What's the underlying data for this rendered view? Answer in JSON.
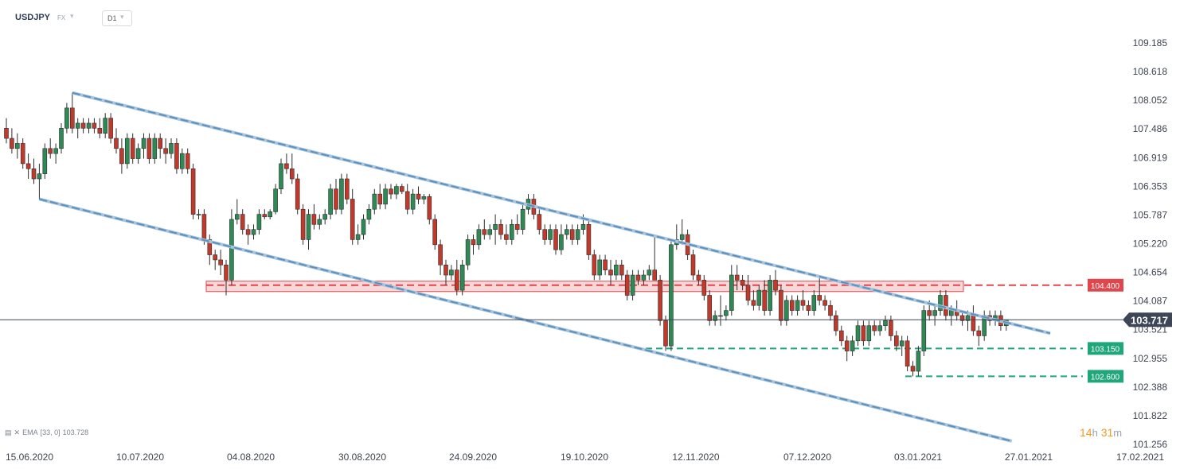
{
  "header": {
    "symbol": "USDJPY",
    "market": "FX",
    "caret_icon": "chevron-down-icon",
    "timeframe": "D1"
  },
  "indicator": {
    "icon": "indicator-icon",
    "close_icon": "close-icon",
    "label": "EMA",
    "params": "[33, 0]",
    "value": "103.728"
  },
  "countdown": {
    "hours": "14",
    "h_unit": "h",
    "minutes": "31",
    "m_unit": "m"
  },
  "colors": {
    "bull": "#2e8a55",
    "bear": "#c0392b",
    "channel": "#5a91bf",
    "resistance": "#e0474c",
    "support": "#1fa77a",
    "price_tag": "#3d4656"
  },
  "chart_data": {
    "type": "candlestick",
    "symbol": "USDJPY",
    "timeframe": "D1",
    "last_price": 103.717,
    "ylim": [
      101.1,
      109.5
    ],
    "y_ticks": [
      109.185,
      108.618,
      108.052,
      107.486,
      106.919,
      106.353,
      105.787,
      105.22,
      104.654,
      104.087,
      103.521,
      102.955,
      102.388,
      101.822,
      101.256
    ],
    "x_ticks": [
      "15.06.2020",
      "10.07.2020",
      "04.08.2020",
      "30.08.2020",
      "24.09.2020",
      "19.10.2020",
      "12.11.2020",
      "07.12.2020",
      "03.01.2021",
      "27.01.2021",
      "17.02.2021"
    ],
    "levels": [
      {
        "value": 104.4,
        "label": "104.400",
        "kind": "resistance zone"
      },
      {
        "value": 103.15,
        "label": "103.150",
        "kind": "support"
      },
      {
        "value": 102.6,
        "label": "102.600",
        "kind": "support"
      }
    ],
    "channel_upper": [
      {
        "bar": 12,
        "price": 108.2
      },
      {
        "bar": 190,
        "price": 103.45
      }
    ],
    "channel_lower": [
      {
        "bar": 6,
        "price": 106.1
      },
      {
        "bar": 183,
        "price": 101.32
      }
    ],
    "candles": [
      [
        107.5,
        107.7,
        107.2,
        107.3
      ],
      [
        107.3,
        107.5,
        107.0,
        107.1
      ],
      [
        107.1,
        107.4,
        106.9,
        107.2
      ],
      [
        107.2,
        107.3,
        106.7,
        106.8
      ],
      [
        106.8,
        107.0,
        106.5,
        106.7
      ],
      [
        106.7,
        106.9,
        106.4,
        106.5
      ],
      [
        106.5,
        106.8,
        106.1,
        106.6
      ],
      [
        106.6,
        107.2,
        106.5,
        107.1
      ],
      [
        107.1,
        107.3,
        106.9,
        107.0
      ],
      [
        107.0,
        107.2,
        106.8,
        107.1
      ],
      [
        107.1,
        107.6,
        107.0,
        107.5
      ],
      [
        107.5,
        108.0,
        107.4,
        107.9
      ],
      [
        107.9,
        108.2,
        107.4,
        107.5
      ],
      [
        107.5,
        107.7,
        107.3,
        107.6
      ],
      [
        107.6,
        107.7,
        107.4,
        107.5
      ],
      [
        107.5,
        107.7,
        107.4,
        107.6
      ],
      [
        107.6,
        107.7,
        107.4,
        107.5
      ],
      [
        107.5,
        107.7,
        107.3,
        107.4
      ],
      [
        107.4,
        107.8,
        107.3,
        107.7
      ],
      [
        107.7,
        107.8,
        107.2,
        107.3
      ],
      [
        107.3,
        107.5,
        107.0,
        107.1
      ],
      [
        107.1,
        107.3,
        106.6,
        106.8
      ],
      [
        106.8,
        107.4,
        106.7,
        107.3
      ],
      [
        107.3,
        107.4,
        106.8,
        106.9
      ],
      [
        106.9,
        107.2,
        106.8,
        107.1
      ],
      [
        107.1,
        107.4,
        106.9,
        107.3
      ],
      [
        107.3,
        107.4,
        106.8,
        106.9
      ],
      [
        106.9,
        107.4,
        106.8,
        107.3
      ],
      [
        107.3,
        107.4,
        106.9,
        107.1
      ],
      [
        107.1,
        107.3,
        106.8,
        107.0
      ],
      [
        107.0,
        107.3,
        106.9,
        107.2
      ],
      [
        107.2,
        107.3,
        106.6,
        106.7
      ],
      [
        106.7,
        107.1,
        106.6,
        107.0
      ],
      [
        107.0,
        107.1,
        106.6,
        106.7
      ],
      [
        106.7,
        106.8,
        105.7,
        105.8
      ],
      [
        105.8,
        105.9,
        105.7,
        105.8
      ],
      [
        105.8,
        105.9,
        105.2,
        105.3
      ],
      [
        105.3,
        105.4,
        104.8,
        105.0
      ],
      [
        105.0,
        105.1,
        104.7,
        104.9
      ],
      [
        104.9,
        105.1,
        104.6,
        104.8
      ],
      [
        104.8,
        104.9,
        104.2,
        104.5
      ],
      [
        104.5,
        105.9,
        104.4,
        105.7
      ],
      [
        105.7,
        106.1,
        105.6,
        105.8
      ],
      [
        105.8,
        105.9,
        105.4,
        105.5
      ],
      [
        105.5,
        105.6,
        105.2,
        105.4
      ],
      [
        105.4,
        105.6,
        105.3,
        105.5
      ],
      [
        105.5,
        105.9,
        105.4,
        105.8
      ],
      [
        105.8,
        105.9,
        105.7,
        105.75
      ],
      [
        105.75,
        105.9,
        105.7,
        105.85
      ],
      [
        105.85,
        106.4,
        105.8,
        106.3
      ],
      [
        106.3,
        106.9,
        106.2,
        106.8
      ],
      [
        106.8,
        107.0,
        106.6,
        106.7
      ],
      [
        106.7,
        107.0,
        106.4,
        106.5
      ],
      [
        106.5,
        106.6,
        105.8,
        105.9
      ],
      [
        105.9,
        106.0,
        105.2,
        105.3
      ],
      [
        105.3,
        105.9,
        105.1,
        105.8
      ],
      [
        105.8,
        106.0,
        105.5,
        105.6
      ],
      [
        105.6,
        105.8,
        105.5,
        105.7
      ],
      [
        105.7,
        105.9,
        105.6,
        105.8
      ],
      [
        105.8,
        106.4,
        105.7,
        106.3
      ],
      [
        106.3,
        106.5,
        105.8,
        105.9
      ],
      [
        105.9,
        106.6,
        105.8,
        106.5
      ],
      [
        106.5,
        106.6,
        106.0,
        106.1
      ],
      [
        106.1,
        106.3,
        105.2,
        105.3
      ],
      [
        105.3,
        105.6,
        105.2,
        105.4
      ],
      [
        105.4,
        105.8,
        105.3,
        105.7
      ],
      [
        105.7,
        106.0,
        105.6,
        105.9
      ],
      [
        105.9,
        106.3,
        105.8,
        106.2
      ],
      [
        106.2,
        106.4,
        105.9,
        106.0
      ],
      [
        106.0,
        106.4,
        105.9,
        106.3
      ],
      [
        106.3,
        106.4,
        106.1,
        106.2
      ],
      [
        106.2,
        106.4,
        106.1,
        106.35
      ],
      [
        106.35,
        106.4,
        106.2,
        106.25
      ],
      [
        106.25,
        106.4,
        105.8,
        105.9
      ],
      [
        105.9,
        106.3,
        105.8,
        106.2
      ],
      [
        106.2,
        106.35,
        106.0,
        106.1
      ],
      [
        106.1,
        106.2,
        106.0,
        106.15
      ],
      [
        106.15,
        106.2,
        105.6,
        105.7
      ],
      [
        105.7,
        105.8,
        105.1,
        105.2
      ],
      [
        105.2,
        105.3,
        104.6,
        104.8
      ],
      [
        104.8,
        104.9,
        104.4,
        104.6
      ],
      [
        104.6,
        104.8,
        104.5,
        104.7
      ],
      [
        104.7,
        104.9,
        104.2,
        104.3
      ],
      [
        104.3,
        104.9,
        104.2,
        104.8
      ],
      [
        104.8,
        105.4,
        104.7,
        105.3
      ],
      [
        105.3,
        105.4,
        105.0,
        105.2
      ],
      [
        105.2,
        105.6,
        105.1,
        105.5
      ],
      [
        105.5,
        105.7,
        105.3,
        105.4
      ],
      [
        105.4,
        105.6,
        105.3,
        105.5
      ],
      [
        105.5,
        105.8,
        105.2,
        105.6
      ],
      [
        105.6,
        105.7,
        105.3,
        105.4
      ],
      [
        105.4,
        105.6,
        105.2,
        105.3
      ],
      [
        105.3,
        105.7,
        105.2,
        105.6
      ],
      [
        105.6,
        105.8,
        105.4,
        105.5
      ],
      [
        105.5,
        106.0,
        105.4,
        105.9
      ],
      [
        105.9,
        106.2,
        105.8,
        106.1
      ],
      [
        106.1,
        106.2,
        105.7,
        105.8
      ],
      [
        105.8,
        105.9,
        105.4,
        105.5
      ],
      [
        105.5,
        105.6,
        105.2,
        105.3
      ],
      [
        105.3,
        105.6,
        105.2,
        105.5
      ],
      [
        105.5,
        105.6,
        105.0,
        105.1
      ],
      [
        105.1,
        105.6,
        105.0,
        105.4
      ],
      [
        105.4,
        105.6,
        105.3,
        105.5
      ],
      [
        105.5,
        105.6,
        105.2,
        105.3
      ],
      [
        105.3,
        105.6,
        105.2,
        105.5
      ],
      [
        105.5,
        105.8,
        105.4,
        105.6
      ],
      [
        105.6,
        105.7,
        104.9,
        105.0
      ],
      [
        105.0,
        105.1,
        104.5,
        104.6
      ],
      [
        104.6,
        105.0,
        104.5,
        104.9
      ],
      [
        104.9,
        105.0,
        104.6,
        104.7
      ],
      [
        104.7,
        104.9,
        104.4,
        104.6
      ],
      [
        104.6,
        104.9,
        104.5,
        104.8
      ],
      [
        104.8,
        104.9,
        104.5,
        104.6
      ],
      [
        104.6,
        104.7,
        104.1,
        104.2
      ],
      [
        104.2,
        104.7,
        104.1,
        104.6
      ],
      [
        104.6,
        104.7,
        104.4,
        104.5
      ],
      [
        104.5,
        104.7,
        104.4,
        104.6
      ],
      [
        104.6,
        104.8,
        104.5,
        104.7
      ],
      [
        104.7,
        105.4,
        104.5,
        104.5
      ],
      [
        104.5,
        104.6,
        103.6,
        103.7
      ],
      [
        103.7,
        103.8,
        103.1,
        103.2
      ],
      [
        103.2,
        105.3,
        103.1,
        105.2
      ],
      [
        105.2,
        105.6,
        105.1,
        105.3
      ],
      [
        105.3,
        105.7,
        105.2,
        105.4
      ],
      [
        105.4,
        105.5,
        104.9,
        105.0
      ],
      [
        105.0,
        105.1,
        104.5,
        104.6
      ],
      [
        104.6,
        104.7,
        104.4,
        104.5
      ],
      [
        104.5,
        104.6,
        104.1,
        104.2
      ],
      [
        104.2,
        104.3,
        103.6,
        103.7
      ],
      [
        103.7,
        103.9,
        103.6,
        103.8
      ],
      [
        103.8,
        104.2,
        103.6,
        103.8
      ],
      [
        103.8,
        104.0,
        103.7,
        103.9
      ],
      [
        103.9,
        104.8,
        103.8,
        104.6
      ],
      [
        104.6,
        104.8,
        104.3,
        104.5
      ],
      [
        104.5,
        104.6,
        104.3,
        104.4
      ],
      [
        104.4,
        104.6,
        104.0,
        104.1
      ],
      [
        104.1,
        104.3,
        103.9,
        104.0
      ],
      [
        104.0,
        104.4,
        103.9,
        104.3
      ],
      [
        104.3,
        104.5,
        103.8,
        103.9
      ],
      [
        103.9,
        104.6,
        103.8,
        104.5
      ],
      [
        104.5,
        104.7,
        104.2,
        104.3
      ],
      [
        104.3,
        104.4,
        103.6,
        103.7
      ],
      [
        103.7,
        104.2,
        103.6,
        104.1
      ],
      [
        104.1,
        104.2,
        103.8,
        103.9
      ],
      [
        103.9,
        104.2,
        103.8,
        104.1
      ],
      [
        104.1,
        104.3,
        103.9,
        104.0
      ],
      [
        104.0,
        104.1,
        103.8,
        103.9
      ],
      [
        103.9,
        104.3,
        103.8,
        104.2
      ],
      [
        104.2,
        104.6,
        104.0,
        104.1
      ],
      [
        104.1,
        104.2,
        103.9,
        104.0
      ],
      [
        104.0,
        104.1,
        103.7,
        103.8
      ],
      [
        103.8,
        103.9,
        103.4,
        103.5
      ],
      [
        103.5,
        103.6,
        103.2,
        103.3
      ],
      [
        103.3,
        103.4,
        102.9,
        103.1
      ],
      [
        103.1,
        103.4,
        103.0,
        103.3
      ],
      [
        103.3,
        103.7,
        103.2,
        103.6
      ],
      [
        103.6,
        103.7,
        103.2,
        103.3
      ],
      [
        103.3,
        103.7,
        103.2,
        103.6
      ],
      [
        103.6,
        103.7,
        103.4,
        103.5
      ],
      [
        103.5,
        103.7,
        103.4,
        103.6
      ],
      [
        103.6,
        103.8,
        103.5,
        103.7
      ],
      [
        103.7,
        103.8,
        103.3,
        103.4
      ],
      [
        103.4,
        103.5,
        103.1,
        103.2
      ],
      [
        103.2,
        103.4,
        103.0,
        103.3
      ],
      [
        103.3,
        103.4,
        102.7,
        102.8
      ],
      [
        102.8,
        102.9,
        102.6,
        102.7
      ],
      [
        102.7,
        103.2,
        102.6,
        103.1
      ],
      [
        103.1,
        104.0,
        103.0,
        103.9
      ],
      [
        103.9,
        104.1,
        103.7,
        103.8
      ],
      [
        103.8,
        104.0,
        103.6,
        103.9
      ],
      [
        103.9,
        104.3,
        103.8,
        104.2
      ],
      [
        104.2,
        104.3,
        103.7,
        103.8
      ],
      [
        103.8,
        104.0,
        103.6,
        103.9
      ],
      [
        103.9,
        104.1,
        103.7,
        103.8
      ],
      [
        103.8,
        103.9,
        103.6,
        103.7
      ],
      [
        103.7,
        103.9,
        103.5,
        103.8
      ],
      [
        103.8,
        104.0,
        103.4,
        103.5
      ],
      [
        103.5,
        103.6,
        103.2,
        103.4
      ],
      [
        103.4,
        103.9,
        103.3,
        103.8
      ],
      [
        103.8,
        103.9,
        103.6,
        103.7
      ],
      [
        103.7,
        103.9,
        103.6,
        103.8
      ],
      [
        103.8,
        103.9,
        103.5,
        103.6
      ],
      [
        103.6,
        103.7,
        103.5,
        103.717
      ]
    ]
  }
}
